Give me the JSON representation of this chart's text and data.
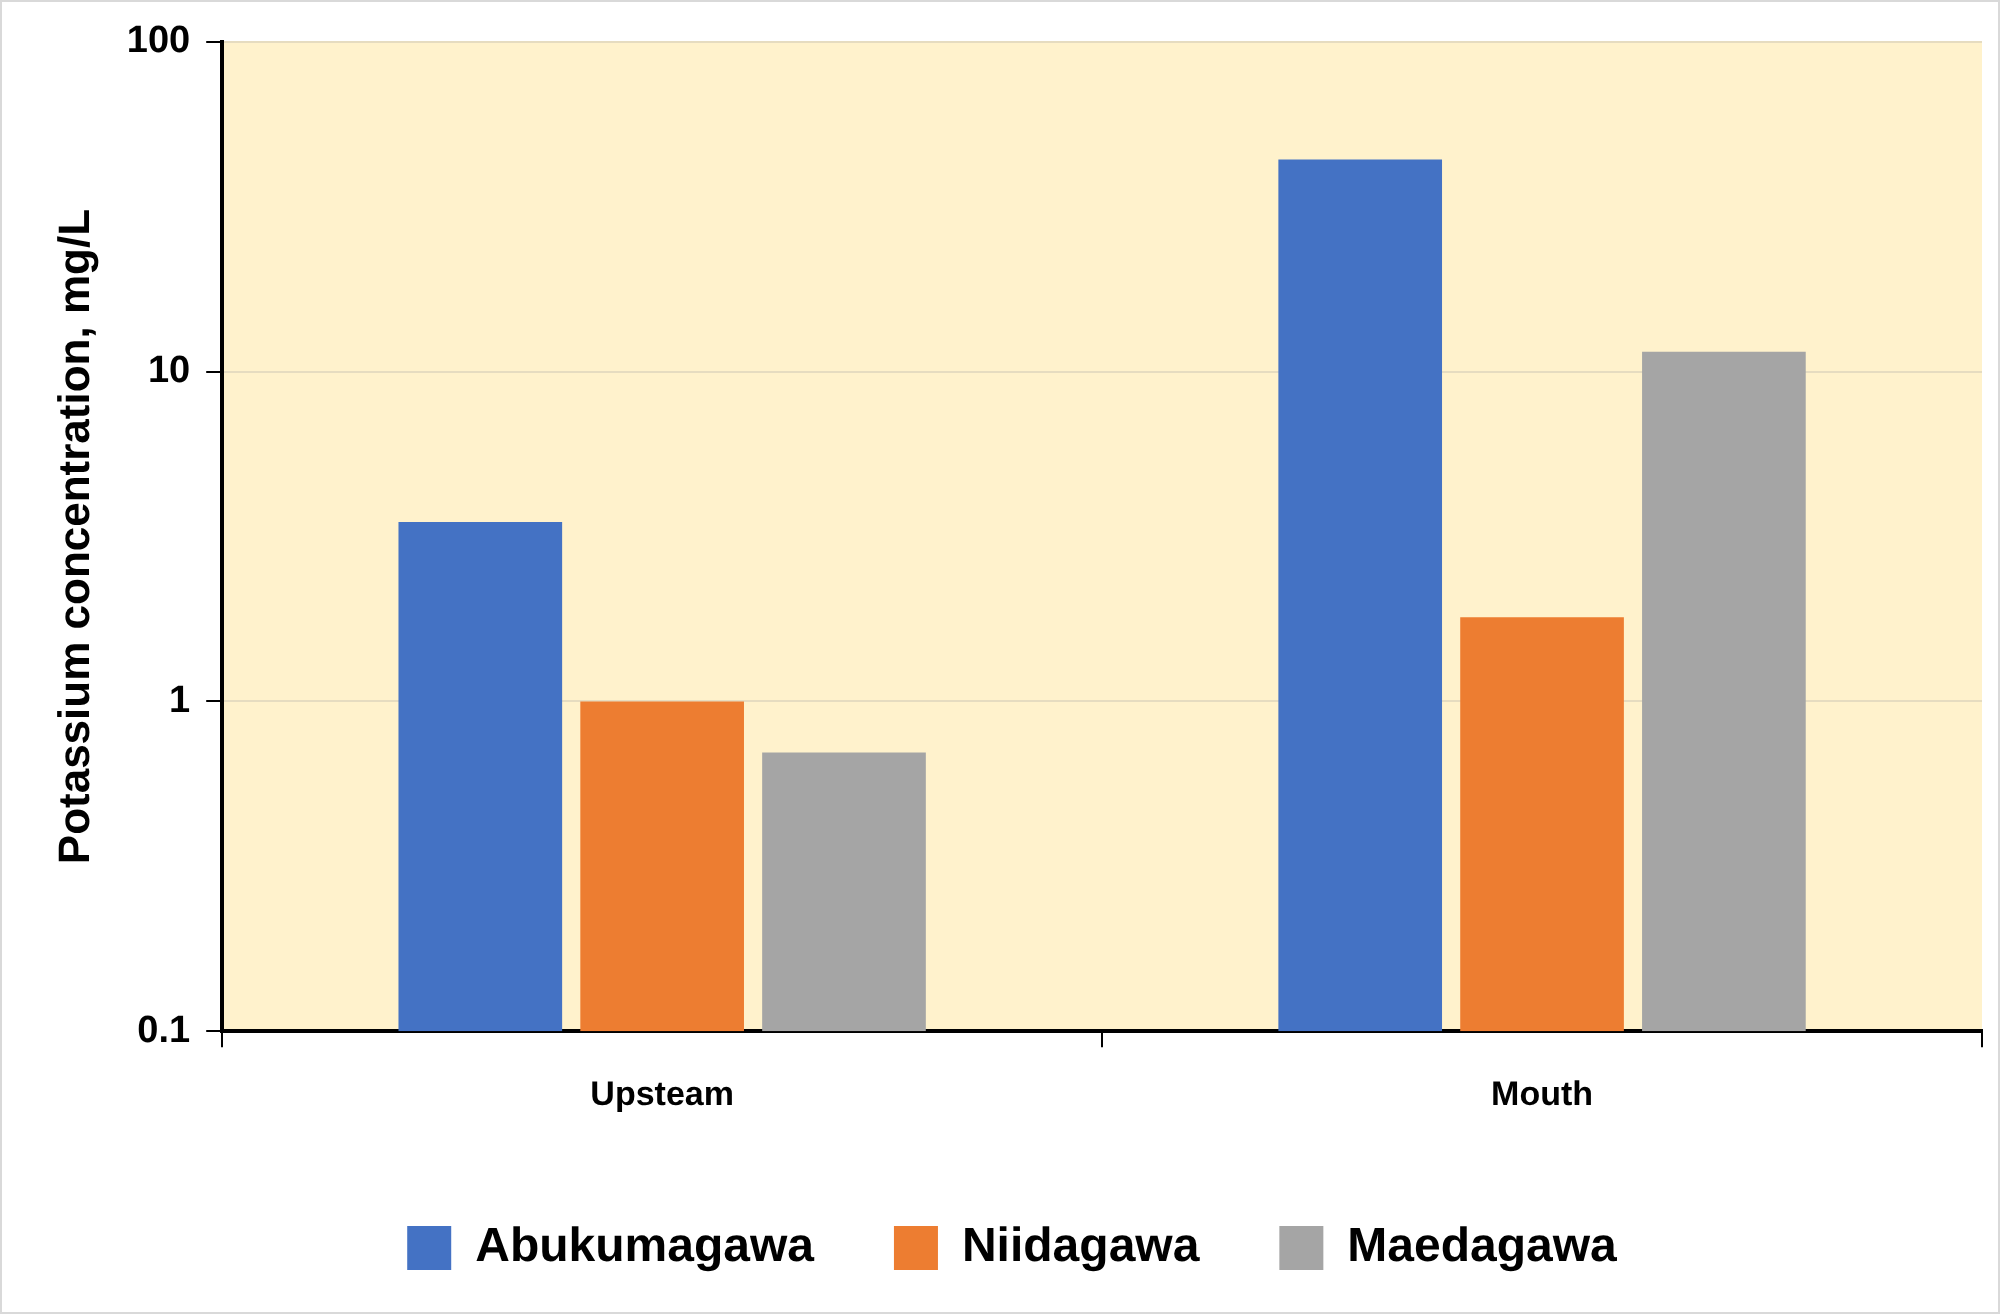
{
  "chart_data": {
    "type": "bar",
    "ylabel": "Potassium concentration, mg/L",
    "categories": [
      "Upsteam",
      "Mouth"
    ],
    "series": [
      {
        "name": "Abukumagawa",
        "color": "#4472c4",
        "values": [
          3.5,
          44
        ]
      },
      {
        "name": "Niidagawa",
        "color": "#ed7d31",
        "values": [
          1.0,
          1.8
        ]
      },
      {
        "name": "Maedagawa",
        "color": "#a5a5a5",
        "values": [
          0.7,
          11.5
        ]
      }
    ],
    "log": true,
    "ylim": [
      0.1,
      100
    ],
    "yticks": [
      0.1,
      1,
      10,
      100
    ],
    "grid": "y",
    "legend": "bottom"
  }
}
